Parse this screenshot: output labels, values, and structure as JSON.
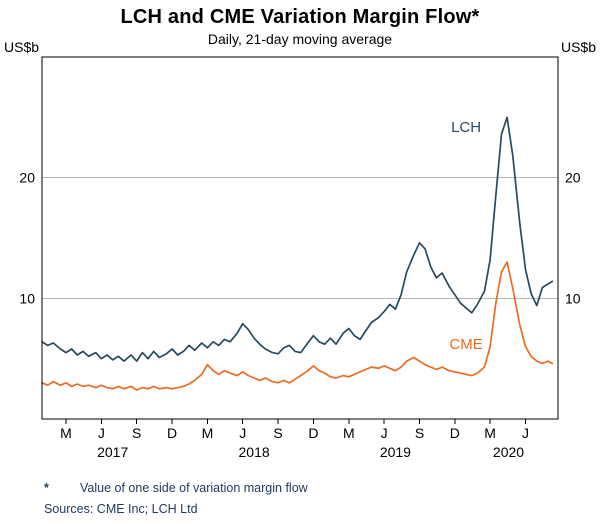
{
  "title": "LCH and CME Variation Margin Flow*",
  "subtitle": "Daily, 21-day moving average",
  "y_axis": {
    "unit_left": "US$b",
    "unit_right": "US$b",
    "ticks": [
      10,
      20
    ]
  },
  "x_axis": {
    "month_ticks": [
      {
        "x": 2017.17,
        "label": "M"
      },
      {
        "x": 2017.42,
        "label": "J"
      },
      {
        "x": 2017.67,
        "label": "S"
      },
      {
        "x": 2017.92,
        "label": "D"
      },
      {
        "x": 2018.17,
        "label": "M"
      },
      {
        "x": 2018.42,
        "label": "J"
      },
      {
        "x": 2018.67,
        "label": "S"
      },
      {
        "x": 2018.92,
        "label": "D"
      },
      {
        "x": 2019.17,
        "label": "M"
      },
      {
        "x": 2019.42,
        "label": "J"
      },
      {
        "x": 2019.67,
        "label": "S"
      },
      {
        "x": 2019.92,
        "label": "D"
      },
      {
        "x": 2020.17,
        "label": "M"
      },
      {
        "x": 2020.42,
        "label": "J"
      }
    ],
    "year_labels": [
      {
        "x": 2017.5,
        "label": "2017"
      },
      {
        "x": 2018.5,
        "label": "2018"
      },
      {
        "x": 2019.5,
        "label": "2019"
      },
      {
        "x": 2020.3,
        "label": "2020"
      }
    ]
  },
  "footnote": {
    "marker": "*",
    "text": "Value of one side of variation margin flow"
  },
  "sources": "Sources: CME Inc; LCH Ltd",
  "colors": {
    "lch": "#274a5e",
    "cme": "#e96b24",
    "grid": "#b5b5b5",
    "axis": "#000000",
    "footnote_text": "#223a5e"
  },
  "chart_data": {
    "type": "line",
    "title": "LCH and CME Variation Margin Flow",
    "subtitle": "Daily, 21-day moving average",
    "ylabel": "US$b",
    "x_range": [
      2017.0,
      2020.65
    ],
    "ylim": [
      0,
      30
    ],
    "grid": true,
    "series": [
      {
        "name": "LCH",
        "color": "#274a5e",
        "label_pos": [
          2020.0,
          23.8
        ],
        "points": [
          [
            2017.0,
            6.4
          ],
          [
            2017.04,
            6.1
          ],
          [
            2017.08,
            6.3
          ],
          [
            2017.13,
            5.8
          ],
          [
            2017.17,
            5.5
          ],
          [
            2017.21,
            5.8
          ],
          [
            2017.25,
            5.3
          ],
          [
            2017.29,
            5.6
          ],
          [
            2017.33,
            5.2
          ],
          [
            2017.38,
            5.5
          ],
          [
            2017.42,
            5.0
          ],
          [
            2017.46,
            5.3
          ],
          [
            2017.5,
            4.9
          ],
          [
            2017.54,
            5.2
          ],
          [
            2017.58,
            4.8
          ],
          [
            2017.63,
            5.3
          ],
          [
            2017.67,
            4.8
          ],
          [
            2017.71,
            5.5
          ],
          [
            2017.75,
            5.0
          ],
          [
            2017.79,
            5.6
          ],
          [
            2017.83,
            5.1
          ],
          [
            2017.88,
            5.4
          ],
          [
            2017.92,
            5.8
          ],
          [
            2017.96,
            5.3
          ],
          [
            2018.0,
            5.6
          ],
          [
            2018.04,
            6.1
          ],
          [
            2018.08,
            5.7
          ],
          [
            2018.13,
            6.3
          ],
          [
            2018.17,
            5.9
          ],
          [
            2018.21,
            6.4
          ],
          [
            2018.25,
            6.1
          ],
          [
            2018.29,
            6.6
          ],
          [
            2018.33,
            6.4
          ],
          [
            2018.38,
            7.1
          ],
          [
            2018.42,
            7.9
          ],
          [
            2018.46,
            7.4
          ],
          [
            2018.5,
            6.7
          ],
          [
            2018.54,
            6.2
          ],
          [
            2018.58,
            5.8
          ],
          [
            2018.63,
            5.5
          ],
          [
            2018.67,
            5.4
          ],
          [
            2018.71,
            5.9
          ],
          [
            2018.75,
            6.1
          ],
          [
            2018.79,
            5.6
          ],
          [
            2018.83,
            5.5
          ],
          [
            2018.88,
            6.3
          ],
          [
            2018.92,
            6.9
          ],
          [
            2018.96,
            6.4
          ],
          [
            2019.0,
            6.2
          ],
          [
            2019.04,
            6.7
          ],
          [
            2019.08,
            6.2
          ],
          [
            2019.13,
            7.1
          ],
          [
            2019.17,
            7.5
          ],
          [
            2019.21,
            6.9
          ],
          [
            2019.25,
            6.6
          ],
          [
            2019.29,
            7.3
          ],
          [
            2019.33,
            8.0
          ],
          [
            2019.38,
            8.4
          ],
          [
            2019.42,
            8.9
          ],
          [
            2019.46,
            9.5
          ],
          [
            2019.5,
            9.1
          ],
          [
            2019.54,
            10.3
          ],
          [
            2019.58,
            12.2
          ],
          [
            2019.63,
            13.6
          ],
          [
            2019.67,
            14.6
          ],
          [
            2019.71,
            14.1
          ],
          [
            2019.75,
            12.6
          ],
          [
            2019.79,
            11.7
          ],
          [
            2019.83,
            12.1
          ],
          [
            2019.88,
            11.0
          ],
          [
            2019.92,
            10.3
          ],
          [
            2019.96,
            9.6
          ],
          [
            2020.0,
            9.2
          ],
          [
            2020.04,
            8.8
          ],
          [
            2020.08,
            9.5
          ],
          [
            2020.13,
            10.6
          ],
          [
            2020.17,
            13.2
          ],
          [
            2020.21,
            18.5
          ],
          [
            2020.25,
            23.6
          ],
          [
            2020.29,
            25.0
          ],
          [
            2020.33,
            21.8
          ],
          [
            2020.38,
            16.2
          ],
          [
            2020.42,
            12.4
          ],
          [
            2020.46,
            10.4
          ],
          [
            2020.5,
            9.4
          ],
          [
            2020.54,
            10.9
          ],
          [
            2020.58,
            11.2
          ],
          [
            2020.61,
            11.4
          ]
        ]
      },
      {
        "name": "CME",
        "color": "#e96b24",
        "label_pos": [
          2020.0,
          5.8
        ],
        "points": [
          [
            2017.0,
            3.0
          ],
          [
            2017.04,
            2.8
          ],
          [
            2017.08,
            3.1
          ],
          [
            2017.13,
            2.8
          ],
          [
            2017.17,
            3.0
          ],
          [
            2017.21,
            2.7
          ],
          [
            2017.25,
            2.9
          ],
          [
            2017.29,
            2.7
          ],
          [
            2017.33,
            2.8
          ],
          [
            2017.38,
            2.6
          ],
          [
            2017.42,
            2.8
          ],
          [
            2017.46,
            2.6
          ],
          [
            2017.5,
            2.5
          ],
          [
            2017.54,
            2.7
          ],
          [
            2017.58,
            2.5
          ],
          [
            2017.63,
            2.7
          ],
          [
            2017.67,
            2.4
          ],
          [
            2017.71,
            2.6
          ],
          [
            2017.75,
            2.5
          ],
          [
            2017.79,
            2.7
          ],
          [
            2017.83,
            2.5
          ],
          [
            2017.88,
            2.6
          ],
          [
            2017.92,
            2.5
          ],
          [
            2017.96,
            2.6
          ],
          [
            2018.0,
            2.7
          ],
          [
            2018.04,
            2.9
          ],
          [
            2018.08,
            3.2
          ],
          [
            2018.13,
            3.7
          ],
          [
            2018.17,
            4.5
          ],
          [
            2018.21,
            4.0
          ],
          [
            2018.25,
            3.7
          ],
          [
            2018.29,
            4.0
          ],
          [
            2018.33,
            3.8
          ],
          [
            2018.38,
            3.6
          ],
          [
            2018.42,
            3.9
          ],
          [
            2018.46,
            3.6
          ],
          [
            2018.5,
            3.4
          ],
          [
            2018.54,
            3.2
          ],
          [
            2018.58,
            3.4
          ],
          [
            2018.63,
            3.1
          ],
          [
            2018.67,
            3.0
          ],
          [
            2018.71,
            3.2
          ],
          [
            2018.75,
            3.0
          ],
          [
            2018.79,
            3.3
          ],
          [
            2018.83,
            3.6
          ],
          [
            2018.88,
            4.0
          ],
          [
            2018.92,
            4.4
          ],
          [
            2018.96,
            4.0
          ],
          [
            2019.0,
            3.8
          ],
          [
            2019.04,
            3.5
          ],
          [
            2019.08,
            3.4
          ],
          [
            2019.13,
            3.6
          ],
          [
            2019.17,
            3.5
          ],
          [
            2019.21,
            3.7
          ],
          [
            2019.25,
            3.9
          ],
          [
            2019.29,
            4.1
          ],
          [
            2019.33,
            4.3
          ],
          [
            2019.38,
            4.2
          ],
          [
            2019.42,
            4.4
          ],
          [
            2019.46,
            4.2
          ],
          [
            2019.5,
            4.0
          ],
          [
            2019.54,
            4.3
          ],
          [
            2019.58,
            4.8
          ],
          [
            2019.63,
            5.1
          ],
          [
            2019.67,
            4.8
          ],
          [
            2019.71,
            4.5
          ],
          [
            2019.75,
            4.3
          ],
          [
            2019.79,
            4.1
          ],
          [
            2019.83,
            4.3
          ],
          [
            2019.88,
            4.0
          ],
          [
            2019.92,
            3.9
          ],
          [
            2019.96,
            3.8
          ],
          [
            2020.0,
            3.7
          ],
          [
            2020.04,
            3.6
          ],
          [
            2020.08,
            3.8
          ],
          [
            2020.13,
            4.3
          ],
          [
            2020.17,
            6.0
          ],
          [
            2020.21,
            9.6
          ],
          [
            2020.25,
            12.2
          ],
          [
            2020.29,
            13.0
          ],
          [
            2020.33,
            10.8
          ],
          [
            2020.38,
            7.8
          ],
          [
            2020.42,
            6.0
          ],
          [
            2020.46,
            5.2
          ],
          [
            2020.5,
            4.8
          ],
          [
            2020.54,
            4.6
          ],
          [
            2020.58,
            4.8
          ],
          [
            2020.61,
            4.6
          ]
        ]
      }
    ]
  }
}
